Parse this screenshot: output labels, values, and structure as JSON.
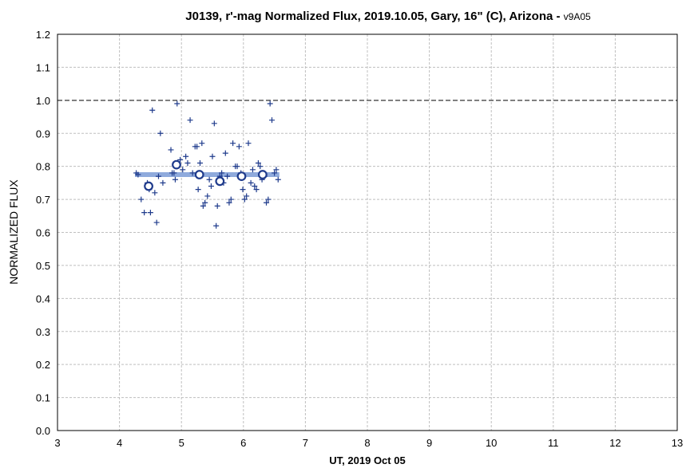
{
  "chart_data": {
    "type": "scatter",
    "title": "J0139, r'-mag Normalized Flux, 2019.10.05, Gary, 16\" (C), Arizona - ",
    "title_suffix": "v9A05",
    "xlabel": "UT, 2019 Oct 05",
    "ylabel": "NORMALIZED FLUX",
    "xlim": [
      3,
      13
    ],
    "ylim": [
      0,
      1.2
    ],
    "x_ticks": [
      "3",
      "4",
      "5",
      "6",
      "7",
      "8",
      "9",
      "10",
      "11",
      "12",
      "13"
    ],
    "y_ticks": [
      "0.0",
      "0.1",
      "0.2",
      "0.3",
      "0.4",
      "0.5",
      "0.6",
      "0.7",
      "0.8",
      "0.9",
      "1.0",
      "1.1",
      "1.2"
    ],
    "grid": true,
    "reference_line": {
      "y": 1.0,
      "style": "dashed",
      "color": "#555555"
    },
    "colors": {
      "points": "#1f3b8c",
      "means_stroke": "#1f3b8c",
      "means_fill": "#ffffff",
      "fit_line": "#8faadc",
      "grid": "#bfbfbf"
    },
    "series": [
      {
        "marker": "plus",
        "points": [
          [
            4.27,
            0.78
          ],
          [
            4.3,
            0.775
          ],
          [
            4.35,
            0.7
          ],
          [
            4.4,
            0.66
          ],
          [
            4.45,
            0.75
          ],
          [
            4.48,
            0.73
          ],
          [
            4.5,
            0.66
          ],
          [
            4.53,
            0.97
          ],
          [
            4.57,
            0.72
          ],
          [
            4.6,
            0.63
          ],
          [
            4.63,
            0.77
          ],
          [
            4.66,
            0.9
          ],
          [
            4.7,
            0.75
          ],
          [
            4.83,
            0.85
          ],
          [
            4.85,
            0.78
          ],
          [
            4.88,
            0.78
          ],
          [
            4.9,
            0.76
          ],
          [
            4.93,
            0.99
          ],
          [
            4.98,
            0.82
          ],
          [
            5.02,
            0.79
          ],
          [
            5.07,
            0.83
          ],
          [
            5.1,
            0.81
          ],
          [
            5.14,
            0.94
          ],
          [
            5.18,
            0.78
          ],
          [
            5.22,
            0.86
          ],
          [
            5.25,
            0.86
          ],
          [
            5.27,
            0.73
          ],
          [
            5.3,
            0.81
          ],
          [
            5.33,
            0.87
          ],
          [
            5.35,
            0.68
          ],
          [
            5.38,
            0.69
          ],
          [
            5.42,
            0.71
          ],
          [
            5.45,
            0.76
          ],
          [
            5.48,
            0.74
          ],
          [
            5.5,
            0.83
          ],
          [
            5.53,
            0.93
          ],
          [
            5.56,
            0.62
          ],
          [
            5.58,
            0.68
          ],
          [
            5.62,
            0.77
          ],
          [
            5.65,
            0.78
          ],
          [
            5.68,
            0.75
          ],
          [
            5.71,
            0.84
          ],
          [
            5.74,
            0.77
          ],
          [
            5.77,
            0.69
          ],
          [
            5.8,
            0.7
          ],
          [
            5.83,
            0.87
          ],
          [
            5.87,
            0.8
          ],
          [
            5.9,
            0.8
          ],
          [
            5.93,
            0.86
          ],
          [
            5.96,
            0.78
          ],
          [
            5.99,
            0.73
          ],
          [
            6.02,
            0.7
          ],
          [
            6.05,
            0.71
          ],
          [
            6.08,
            0.87
          ],
          [
            6.12,
            0.75
          ],
          [
            6.15,
            0.79
          ],
          [
            6.18,
            0.74
          ],
          [
            6.21,
            0.73
          ],
          [
            6.24,
            0.81
          ],
          [
            6.27,
            0.8
          ],
          [
            6.3,
            0.76
          ],
          [
            6.34,
            0.77
          ],
          [
            6.37,
            0.69
          ],
          [
            6.4,
            0.7
          ],
          [
            6.43,
            0.99
          ],
          [
            6.46,
            0.94
          ],
          [
            6.5,
            0.78
          ],
          [
            6.53,
            0.79
          ],
          [
            6.56,
            0.76
          ]
        ]
      },
      {
        "marker": "circle",
        "points": [
          [
            4.47,
            0.74
          ],
          [
            4.92,
            0.805
          ],
          [
            5.29,
            0.775
          ],
          [
            5.62,
            0.755
          ],
          [
            5.97,
            0.77
          ],
          [
            6.31,
            0.775
          ]
        ]
      }
    ],
    "fit_line": {
      "x": [
        4.25,
        6.58
      ],
      "y": [
        0.775,
        0.775
      ]
    }
  }
}
